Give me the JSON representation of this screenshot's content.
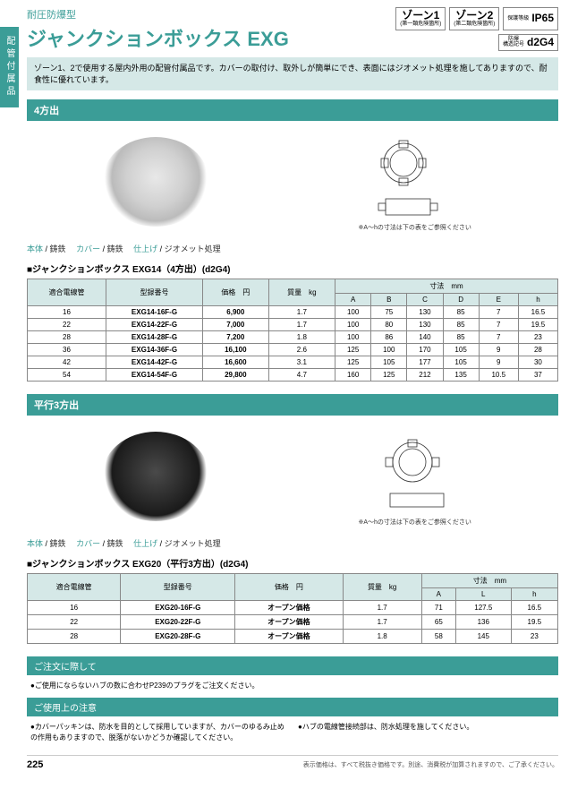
{
  "sideLabel": "配管付属品",
  "subtitle": "耐圧防爆型",
  "title": "ジャンクションボックス EXG",
  "badges": {
    "zone1": {
      "top": "ゾーン1",
      "bottom": "(第一類危険箇所)"
    },
    "zone2": {
      "top": "ゾーン2",
      "bottom": "(第二類危険箇所)"
    },
    "ip": {
      "label": "保護等級",
      "value": "IP65"
    },
    "d2g4": {
      "label": "防爆\n構造記号",
      "value": "d2G4"
    }
  },
  "description": "ゾーン1、2で使用する屋内外用の配管付属品です。カバーの取付け、取外しが簡単にでき、表面にはジオメット処理を施してありますので、耐食性に優れています。",
  "section1": {
    "heading": "4方出",
    "diagramNote": "※A～hの寸法は下の表をご参照ください",
    "material": {
      "body": "本体",
      "bodyVal": "鋳鉄",
      "cover": "カバー",
      "coverVal": "鋳鉄",
      "finish": "仕上げ",
      "finishVal": "ジオメット処理"
    },
    "tableTitle": "■ジャンクションボックス EXG14（4方出）(d2G4)",
    "headers": {
      "conduit": "適合電線管",
      "model": "型録番号",
      "price": "価格　円",
      "weight": "質量　kg",
      "dims": "寸法　mm",
      "A": "A",
      "B": "B",
      "C": "C",
      "D": "D",
      "E": "E",
      "h": "h"
    },
    "rows": [
      {
        "conduit": "16",
        "model": "EXG14-16F-G",
        "price": "6,900",
        "weight": "1.7",
        "A": "100",
        "B": "75",
        "C": "130",
        "D": "85",
        "E": "7",
        "h": "16.5"
      },
      {
        "conduit": "22",
        "model": "EXG14-22F-G",
        "price": "7,000",
        "weight": "1.7",
        "A": "100",
        "B": "80",
        "C": "130",
        "D": "85",
        "E": "7",
        "h": "19.5"
      },
      {
        "conduit": "28",
        "model": "EXG14-28F-G",
        "price": "7,200",
        "weight": "1.8",
        "A": "100",
        "B": "86",
        "C": "140",
        "D": "85",
        "E": "7",
        "h": "23"
      },
      {
        "conduit": "36",
        "model": "EXG14-36F-G",
        "price": "16,100",
        "weight": "2.6",
        "A": "125",
        "B": "100",
        "C": "170",
        "D": "105",
        "E": "9",
        "h": "28"
      },
      {
        "conduit": "42",
        "model": "EXG14-42F-G",
        "price": "16,600",
        "weight": "3.1",
        "A": "125",
        "B": "105",
        "C": "177",
        "D": "105",
        "E": "9",
        "h": "30"
      },
      {
        "conduit": "54",
        "model": "EXG14-54F-G",
        "price": "29,800",
        "weight": "4.7",
        "A": "160",
        "B": "125",
        "C": "212",
        "D": "135",
        "E": "10.5",
        "h": "37"
      }
    ]
  },
  "section2": {
    "heading": "平行3方出",
    "diagramNote": "※A～hの寸法は下の表をご参照ください",
    "tableTitle": "■ジャンクションボックス EXG20（平行3方出）(d2G4)",
    "headers": {
      "conduit": "適合電線管",
      "model": "型録番号",
      "price": "価格　円",
      "weight": "質量　kg",
      "dims": "寸法　mm",
      "A": "A",
      "L": "L",
      "h": "h"
    },
    "rows": [
      {
        "conduit": "16",
        "model": "EXG20-16F-G",
        "price": "オープン価格",
        "weight": "1.7",
        "A": "71",
        "L": "127.5",
        "h": "16.5"
      },
      {
        "conduit": "22",
        "model": "EXG20-22F-G",
        "price": "オープン価格",
        "weight": "1.7",
        "A": "65",
        "L": "136",
        "h": "19.5"
      },
      {
        "conduit": "28",
        "model": "EXG20-28F-G",
        "price": "オープン価格",
        "weight": "1.8",
        "A": "58",
        "L": "145",
        "h": "23"
      }
    ]
  },
  "notices": {
    "order": {
      "title": "ご注文に際して",
      "text": "●ご使用にならないハブの数に合わせP239のプラグをご注文ください。"
    },
    "usage": {
      "title": "ご使用上の注意",
      "text1": "●カバーパッキンは、防水を目的として採用していますが、カバーのゆるみ止めの作用もありますので、脱落がないかどうか確認してください。",
      "text2": "●ハブの電線管接続部は、防水処理を施してください。"
    }
  },
  "pageNum": "225",
  "footerNote": "表示価格は、すべて税抜き価格です。別途、消費税が加算されますので、ご了承ください。"
}
